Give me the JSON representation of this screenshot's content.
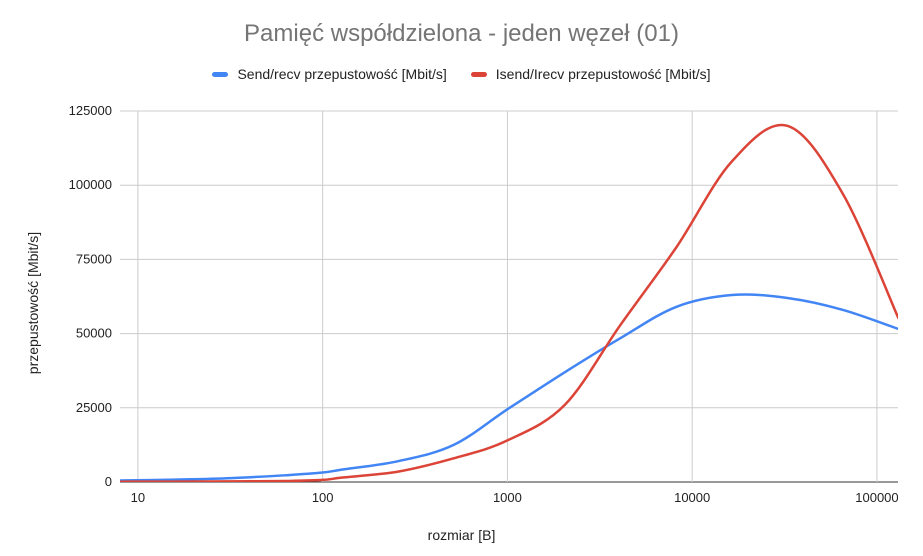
{
  "chart_data": {
    "type": "line",
    "title": "Pamięć współdzielona - jeden węzeł (01)",
    "xlabel": "rozmiar [B]",
    "ylabel": "przepustowość [Mbit/s]",
    "x_scale": "log",
    "xlim": [
      8,
      130000
    ],
    "ylim": [
      0,
      125000
    ],
    "x_ticks": [
      "10",
      "100",
      "1000",
      "10000",
      "100000"
    ],
    "y_ticks": [
      "0",
      "25000",
      "50000",
      "75000",
      "100000",
      "125000"
    ],
    "grid": true,
    "legend_position": "top",
    "series": [
      {
        "name": "Send/recv przepustowość [Mbit/s]",
        "color": "#4285F4",
        "x": [
          8,
          16,
          32,
          64,
          100,
          128,
          256,
          512,
          1000,
          2048,
          4096,
          8192,
          16384,
          32768,
          65536,
          131072
        ],
        "y": [
          500,
          800,
          1300,
          2300,
          3200,
          4200,
          7000,
          12500,
          24500,
          37000,
          48500,
          59000,
          63000,
          62000,
          58000,
          51500
        ]
      },
      {
        "name": "Isend/Irecv przepustowość [Mbit/s]",
        "color": "#DB4437",
        "x": [
          8,
          16,
          32,
          64,
          100,
          128,
          256,
          512,
          1000,
          2048,
          4096,
          8192,
          16384,
          32768,
          65536,
          131072
        ],
        "y": [
          100,
          150,
          200,
          350,
          700,
          1500,
          3500,
          8000,
          14000,
          26000,
          53000,
          79000,
          108000,
          120000,
          97000,
          55000
        ]
      }
    ]
  }
}
